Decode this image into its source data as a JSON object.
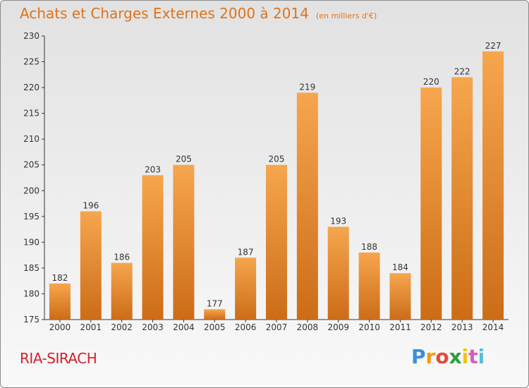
{
  "chart_data": {
    "type": "bar",
    "title": "Achats et Charges Externes 2000 à 2014",
    "unit_note": "(en milliers d'€)",
    "categories": [
      "2000",
      "2001",
      "2002",
      "2003",
      "2004",
      "2005",
      "2006",
      "2007",
      "2008",
      "2009",
      "2010",
      "2011",
      "2012",
      "2013",
      "2014"
    ],
    "values": [
      182,
      196,
      186,
      203,
      205,
      177,
      187,
      205,
      219,
      193,
      188,
      184,
      220,
      222,
      227
    ],
    "ylim": [
      175,
      230
    ],
    "yticks": [
      175,
      180,
      185,
      190,
      195,
      200,
      205,
      210,
      215,
      220,
      225,
      230
    ],
    "grid": false,
    "bar_color": "#f09a3e",
    "bar_color_dark": "#d06f1a",
    "title_color": "#e0731a"
  },
  "place_name": "RIA-SIRACH",
  "logo": {
    "text": "Proxiti",
    "letters": [
      "P",
      "r",
      "o",
      "x",
      "i",
      "t",
      "i"
    ],
    "colors": [
      "#3a8fd8",
      "#f39c12",
      "#e64a3c",
      "#2e9e3a",
      "#f1c40f",
      "#d95db4",
      "#5bbcd6"
    ]
  }
}
